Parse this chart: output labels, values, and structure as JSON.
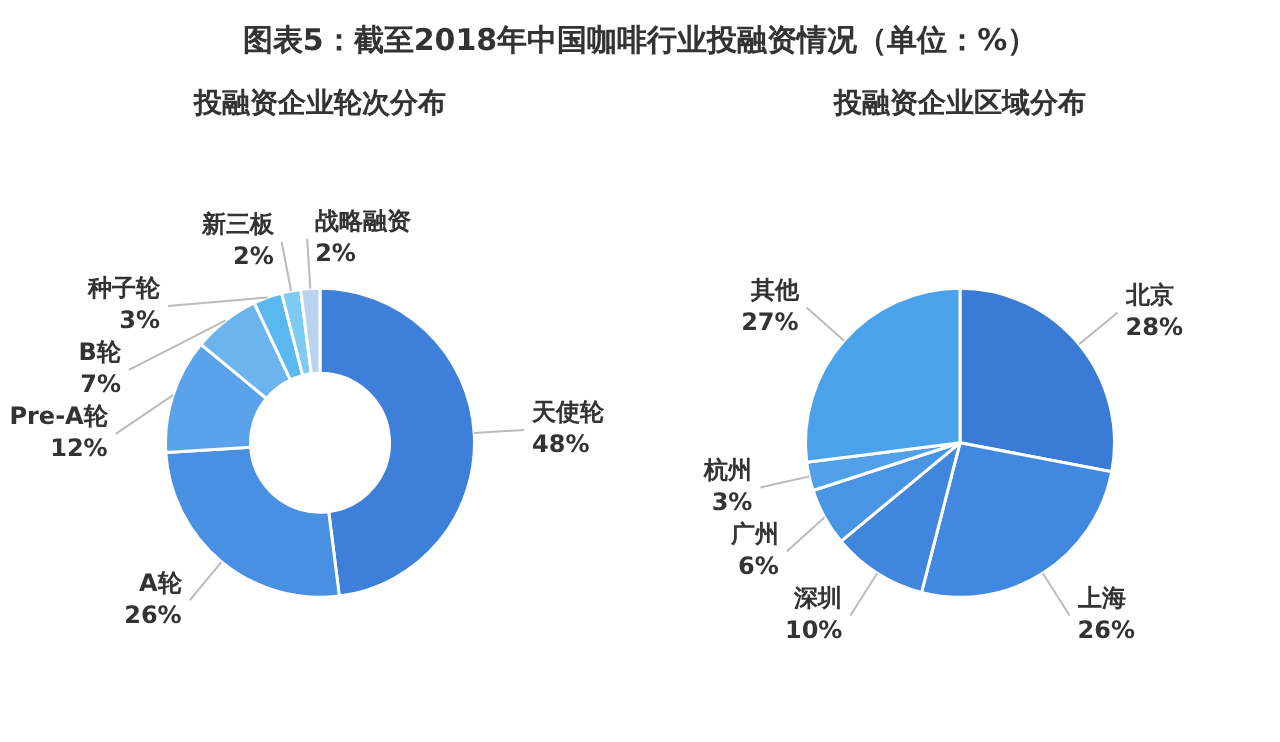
{
  "chart_data": [
    {
      "type": "donut",
      "title": "图表5：截至2018年中国咖啡行业投融资情况（单位：%）",
      "subtitle": "投融资企业轮次分布",
      "categories": [
        "天使轮",
        "A轮",
        "Pre-A轮",
        "B轮",
        "种子轮",
        "新三板",
        "战略融资"
      ],
      "values": [
        48,
        26,
        12,
        7,
        3,
        2,
        2
      ],
      "value_labels": [
        "48%",
        "26%",
        "12%",
        "7%",
        "3%",
        "2%",
        "2%"
      ],
      "colors": [
        "#3d7fd9",
        "#4a90e2",
        "#5aa3ea",
        "#6cb4ee",
        "#58b8ef",
        "#7dcaf2",
        "#b9d3ee"
      ]
    },
    {
      "type": "pie",
      "subtitle": "投融资企业区域分布",
      "categories": [
        "北京",
        "上海",
        "深圳",
        "广州",
        "杭州",
        "其他"
      ],
      "values": [
        28,
        26,
        10,
        6,
        3,
        27
      ],
      "value_labels": [
        "28%",
        "26%",
        "10%",
        "6%",
        "3%",
        "27%"
      ],
      "colors": [
        "#3a7bd5",
        "#4189e0",
        "#3f86dc",
        "#4a94e4",
        "#52a0e8",
        "#4aa2ea"
      ]
    }
  ]
}
